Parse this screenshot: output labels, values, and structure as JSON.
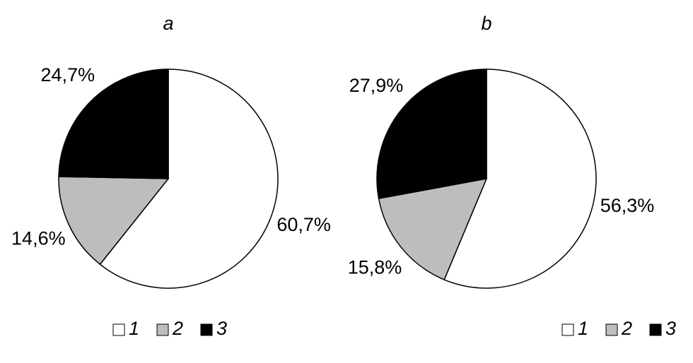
{
  "chart_data": [
    {
      "type": "pie",
      "title": "a",
      "categories": [
        "1",
        "2",
        "3"
      ],
      "values": [
        60.7,
        14.6,
        24.7
      ],
      "value_labels": [
        "60,7%",
        "14,6%",
        "24,7%"
      ],
      "colors": [
        "#ffffff",
        "#bdbdbd",
        "#000000"
      ]
    },
    {
      "type": "pie",
      "title": "b",
      "categories": [
        "1",
        "2",
        "3"
      ],
      "values": [
        56.3,
        15.8,
        27.9
      ],
      "value_labels": [
        "56,3%",
        "15,8%",
        "27,9%"
      ],
      "colors": [
        "#ffffff",
        "#bdbdbd",
        "#000000"
      ]
    }
  ]
}
